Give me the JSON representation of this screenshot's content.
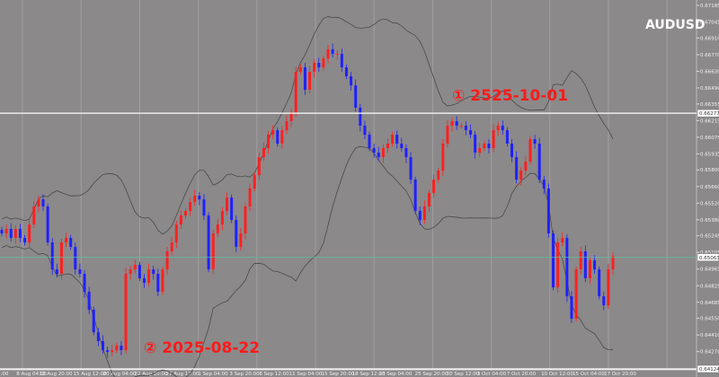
{
  "symbol": "AUDUSD",
  "annotations": [
    {
      "text": "① 2525-10-01"
    },
    {
      "text": "② 2025-08-22"
    }
  ],
  "colors": {
    "background": "#8b898a",
    "up": "#ff2020",
    "down": "#2020ff",
    "band": "#4a4a4a",
    "grid": "#a09ea0",
    "level_line": "#ffffff",
    "current_line": "#5fc0a0"
  },
  "chart_data": {
    "type": "candlestick",
    "indicator": "Bollinger Bands",
    "ylim": [
      0.64124,
      0.67185
    ],
    "y_ticks": [
      "0.67185",
      "0.67045",
      "0.66910",
      "0.66770",
      "0.66630",
      "0.66490",
      "0.66355",
      "0.66215",
      "0.66075",
      "0.65935",
      "0.65800",
      "0.65660",
      "0.65520",
      "0.65380",
      "0.65245",
      "0.65105",
      "0.64965",
      "0.64825",
      "0.64685",
      "0.64550",
      "0.64410",
      "0.64270"
    ],
    "highlighted_levels": [
      {
        "price": "0.66277",
        "line": "level_line"
      },
      {
        "price": "0.65063",
        "line": "current_line"
      },
      {
        "price": "0.64124",
        "line": "level_line"
      }
    ],
    "x_ticks": [
      ":00",
      "8 Aug 04:00",
      "12 Aug 20:00",
      "15 Aug 12:00",
      "20 Aug 04:00",
      "22 Aug 20:00",
      "27 Aug 12:00",
      "1 Sep 04:00",
      "3 Sep 20:00",
      "8 Sep 12:00",
      "11 Sep 04:00",
      "15 Sep 20:00",
      "18 Sep 12:00",
      "23 Sep 04:00",
      "25 Sep 20:00",
      "30 Sep 12:00",
      "3 Oct 04:00",
      "7 Oct 20:00",
      "10 Oct 12:00",
      "15 Oct 04:00",
      "17 Oct 20:00"
    ],
    "closes": [
      0.65265,
      0.65303,
      0.65227,
      0.65303,
      0.65227,
      0.65189,
      0.6534,
      0.65492,
      0.65552,
      0.65492,
      0.65189,
      0.64962,
      0.64925,
      0.65189,
      0.65227,
      0.65151,
      0.64962,
      0.64925,
      0.64773,
      0.64622,
      0.64433,
      0.64358,
      0.64282,
      0.64267,
      0.64282,
      0.6432,
      0.64282,
      0.64925,
      0.64962,
      0.65,
      0.64887,
      0.64849,
      0.64962,
      0.64925,
      0.64773,
      0.64962,
      0.65114,
      0.65189,
      0.6534,
      0.65416,
      0.65454,
      0.65529,
      0.65582,
      0.65552,
      0.65416,
      0.64962,
      0.65265,
      0.6534,
      0.65454,
      0.65567,
      0.65378,
      0.65151,
      0.65265,
      0.65492,
      0.65643,
      0.65756,
      0.65907,
      0.65983,
      0.66096,
      0.66134,
      0.66021,
      0.66134,
      0.6621,
      0.66285,
      0.66626,
      0.66663,
      0.66474,
      0.66626,
      0.66701,
      0.66663,
      0.66739,
      0.66815,
      0.66777,
      0.66777,
      0.66663,
      0.66588,
      0.66512,
      0.66323,
      0.66172,
      0.66096,
      0.65983,
      0.65945,
      0.65907,
      0.65983,
      0.66021,
      0.66096,
      0.66021,
      0.65983,
      0.65907,
      0.65718,
      0.65454,
      0.65378,
      0.65492,
      0.65605,
      0.65718,
      0.65794,
      0.66021,
      0.66172,
      0.6621,
      0.66172,
      0.66172,
      0.66134,
      0.66096,
      0.65945,
      0.65983,
      0.66021,
      0.65983,
      0.66134,
      0.66172,
      0.66134,
      0.66021,
      0.65907,
      0.65718,
      0.65794,
      0.6587,
      0.66059,
      0.66021,
      0.65718,
      0.65643,
      0.65265,
      0.64811,
      0.65189,
      0.65227,
      0.64736,
      0.64547,
      0.64962,
      0.65114,
      0.64887,
      0.65038,
      0.64962,
      0.64736,
      0.6466,
      0.64962,
      0.65076
    ]
  }
}
